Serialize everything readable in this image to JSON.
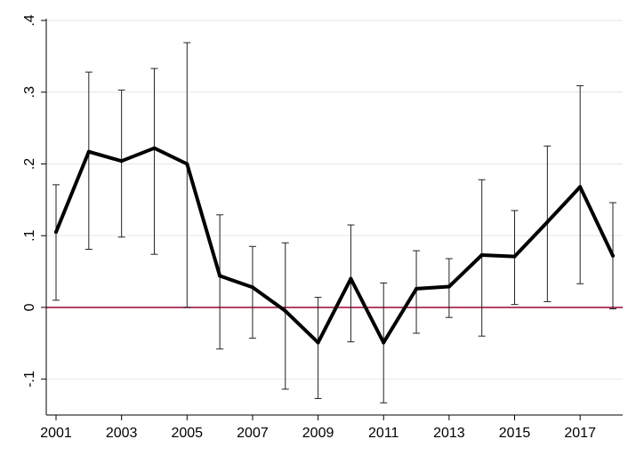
{
  "chart_data": {
    "type": "line",
    "title": "",
    "xlabel": "",
    "ylabel": "",
    "x": [
      2001,
      2002,
      2003,
      2004,
      2005,
      2006,
      2007,
      2008,
      2009,
      2010,
      2011,
      2012,
      2013,
      2014,
      2015,
      2016,
      2017,
      2018
    ],
    "series": [
      {
        "values": [
          0.105,
          0.217,
          0.204,
          0.222,
          0.2,
          0.044,
          0.028,
          -0.005,
          -0.049,
          0.04,
          -0.049,
          0.026,
          0.029,
          0.073,
          0.071,
          0.119,
          0.168,
          0.072
        ],
        "ci_low": [
          0.01,
          0.081,
          0.098,
          0.074,
          0.0,
          -0.058,
          -0.043,
          -0.114,
          -0.127,
          -0.048,
          -0.133,
          -0.036,
          -0.014,
          -0.04,
          0.004,
          0.008,
          0.033,
          -0.002
        ],
        "ci_high": [
          0.171,
          0.328,
          0.303,
          0.333,
          0.369,
          0.129,
          0.085,
          0.09,
          0.014,
          0.115,
          0.034,
          0.079,
          0.068,
          0.178,
          0.135,
          0.225,
          0.309,
          0.146
        ],
        "color": "#000000"
      }
    ],
    "xlim": [
      2001,
      2018
    ],
    "ylim": [
      -0.15,
      0.4
    ],
    "xticks": [
      2001,
      2003,
      2005,
      2007,
      2009,
      2011,
      2013,
      2015,
      2017
    ],
    "xtick_labels": [
      "2001",
      "2003",
      "2005",
      "2007",
      "2009",
      "2011",
      "2013",
      "2015",
      "2017"
    ],
    "yticks": [
      -0.1,
      0,
      0.1,
      0.2,
      0.3,
      0.4
    ],
    "ytick_labels": [
      "-.1",
      "0",
      ".1",
      ".2",
      ".3",
      ".4"
    ],
    "reference_line": {
      "y": 0,
      "color": "#a0173d"
    },
    "grid": true,
    "gridline_color": "#e6e6e6",
    "legend": "none"
  }
}
